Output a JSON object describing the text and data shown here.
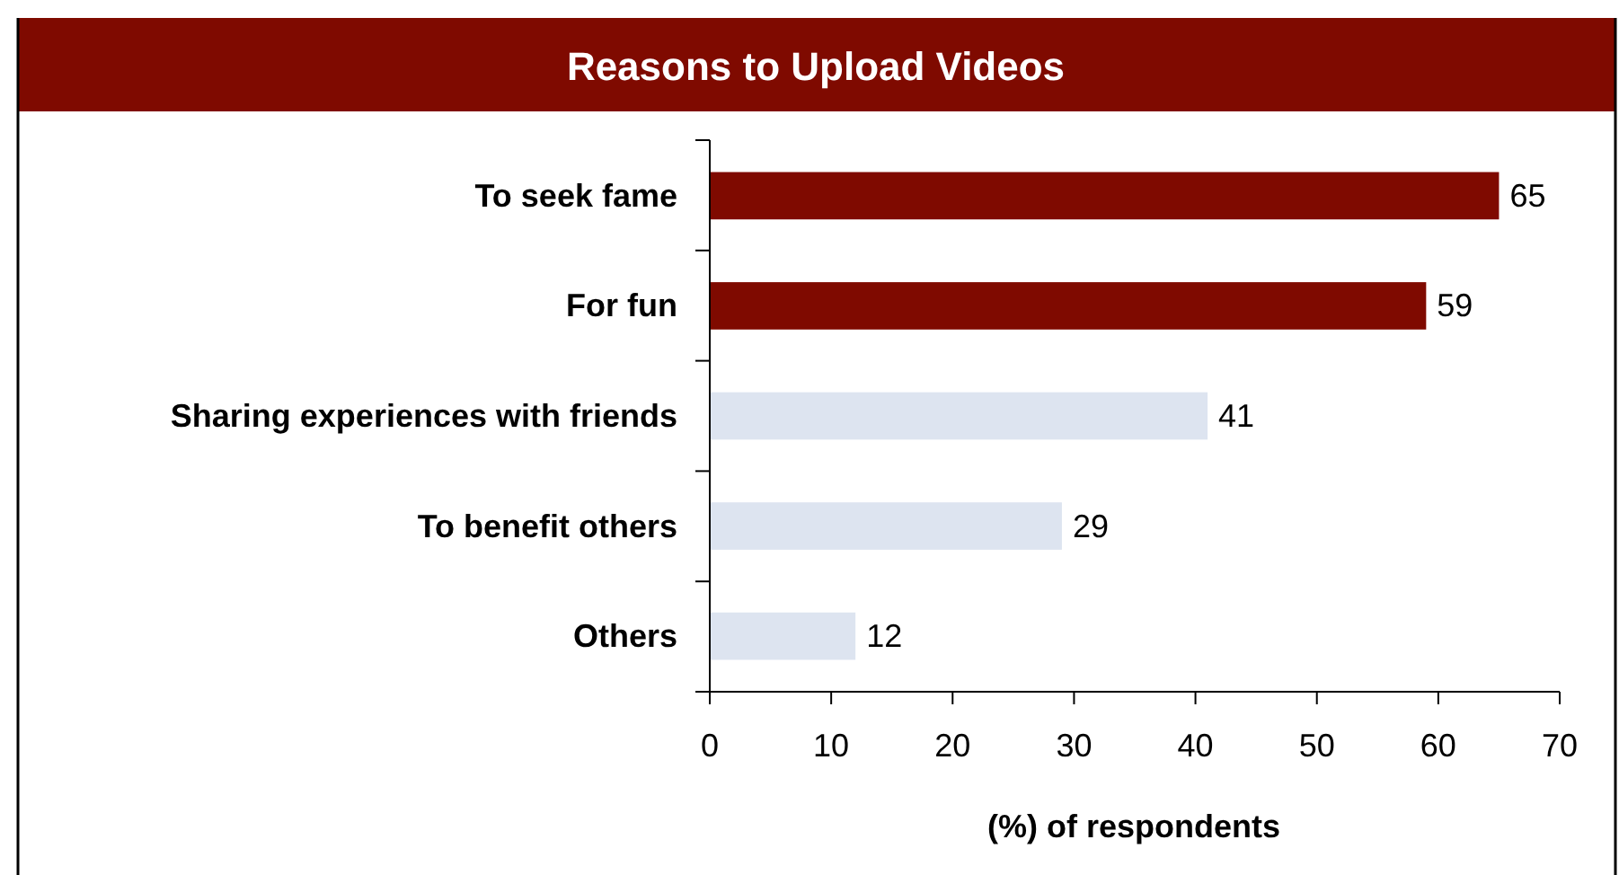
{
  "chart_data": {
    "type": "bar",
    "orientation": "horizontal",
    "title": "Reasons to Upload Videos",
    "categories": [
      "To seek fame",
      "For fun",
      "Sharing experiences with friends",
      "To benefit others",
      "Others"
    ],
    "values": [
      65,
      59,
      41,
      29,
      12
    ],
    "colors": [
      "#7f0a00",
      "#7f0a00",
      "#dde4f0",
      "#dde4f0",
      "#dde4f0"
    ],
    "xlabel": "(%) of respondents",
    "xlim": [
      0,
      70
    ],
    "xticks": [
      0,
      10,
      20,
      30,
      40,
      50,
      60,
      70
    ],
    "data_labels": true,
    "grid": false
  }
}
